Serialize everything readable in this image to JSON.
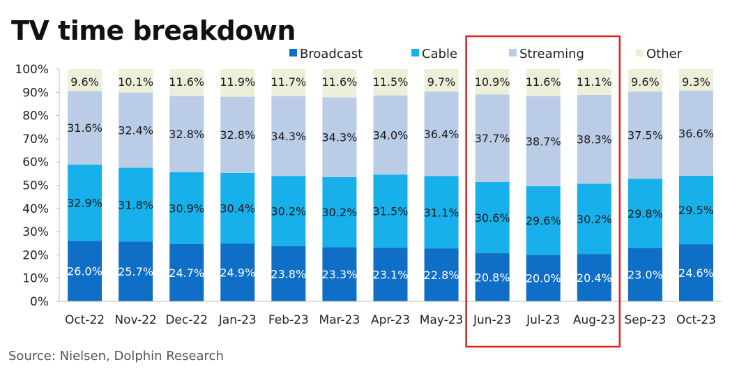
{
  "source": "Source:  Nielsen,  Dolphin Research",
  "colors": {
    "broadcast": "#0F6FC6",
    "cable": "#17B0EA",
    "streaming": "#BACCE6",
    "other": "#EDEFD9",
    "highlight": "#E02020"
  },
  "chart_data": {
    "type": "bar",
    "stacked": true,
    "percent": true,
    "title": "TV time breakdown",
    "xlabel": "",
    "ylabel": "",
    "ylim": [
      0,
      100
    ],
    "yticks": [
      "0%",
      "10%",
      "20%",
      "30%",
      "40%",
      "50%",
      "60%",
      "70%",
      "80%",
      "90%",
      "100%"
    ],
    "categories": [
      "Oct-22",
      "Nov-22",
      "Dec-22",
      "Jan-23",
      "Feb-23",
      "Mar-23",
      "Apr-23",
      "May-23",
      "Jun-23",
      "Jul-23",
      "Aug-23",
      "Sep-23",
      "Oct-23"
    ],
    "series": [
      {
        "name": "Broadcast",
        "values": [
          26.0,
          25.7,
          24.7,
          24.9,
          23.8,
          23.3,
          23.1,
          22.8,
          20.8,
          20.0,
          20.4,
          23.0,
          24.6
        ],
        "labels": [
          "26.0%",
          "25.7%",
          "24.7%",
          "24.9%",
          "23.8%",
          "23.3%",
          "23.1%",
          "22.8%",
          "20.8%",
          "20.0%",
          "20.4%",
          "23.0%",
          "24.6%"
        ]
      },
      {
        "name": "Cable",
        "values": [
          32.9,
          31.8,
          30.9,
          30.4,
          30.2,
          30.2,
          31.5,
          31.1,
          30.6,
          29.6,
          30.2,
          29.8,
          29.5
        ],
        "labels": [
          "32.9%",
          "31.8%",
          "30.9%",
          "30.4%",
          "30.2%",
          "30.2%",
          "31.5%",
          "31.1%",
          "30.6%",
          "29.6%",
          "30.2%",
          "29.8%",
          "29.5%"
        ]
      },
      {
        "name": "Streaming",
        "values": [
          31.6,
          32.4,
          32.8,
          32.8,
          34.3,
          34.3,
          34.0,
          36.4,
          37.7,
          38.7,
          38.3,
          37.5,
          36.6
        ],
        "labels": [
          "31.6%",
          "32.4%",
          "32.8%",
          "32.8%",
          "34.3%",
          "34.3%",
          "34.0%",
          "36.4%",
          "37.7%",
          "38.7%",
          "38.3%",
          "37.5%",
          "36.6%"
        ]
      },
      {
        "name": "Other",
        "values": [
          9.6,
          10.1,
          11.6,
          11.9,
          11.7,
          11.6,
          11.5,
          9.7,
          10.9,
          11.6,
          11.1,
          9.6,
          9.3
        ],
        "labels": [
          "9.6%",
          "10.1%",
          "11.6%",
          "11.9%",
          "11.7%",
          "11.6%",
          "11.5%",
          "9.7%",
          "10.9%",
          "11.6%",
          "11.1%",
          "9.6%",
          "9.3%"
        ]
      }
    ],
    "highlight": {
      "categories": [
        "Jun-23",
        "Jul-23",
        "Aug-23"
      ]
    },
    "legend": "top",
    "grid": false
  }
}
